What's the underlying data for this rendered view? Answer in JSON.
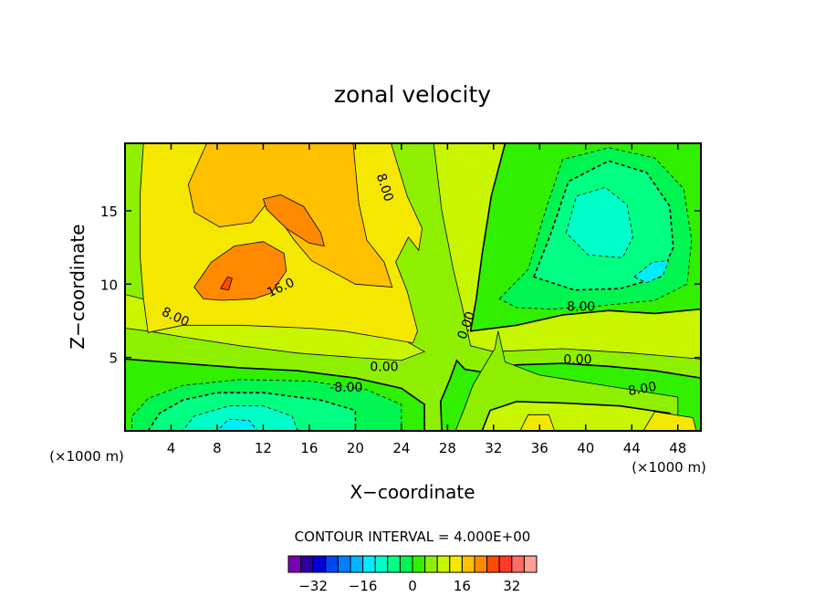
{
  "chart_data": {
    "type": "contour",
    "title": "zonal velocity",
    "xlabel": "X−coordinate",
    "ylabel": "Z−coordinate",
    "x_unit_label": "(×1000 m)",
    "x_unit_label_right": "(×1000 m)",
    "xlim": [
      0,
      50
    ],
    "ylim": [
      0,
      19.6
    ],
    "xticks": [
      4,
      8,
      12,
      16,
      20,
      24,
      28,
      32,
      36,
      40,
      44,
      48
    ],
    "yticks": [
      5,
      10,
      15
    ],
    "contour_interval_text": "CONTOUR INTERVAL = 4.000E+00",
    "contour_labels": [
      {
        "text": "8.00",
        "x": 22.6,
        "y": 16.6,
        "rotation": 72
      },
      {
        "text": "16.0",
        "x": 13.5,
        "y": 9.8,
        "rotation": -25
      },
      {
        "text": "8.00",
        "x": 4.4,
        "y": 7.8,
        "rotation": 25
      },
      {
        "text": "0.00",
        "x": 29.6,
        "y": 7.2,
        "rotation": -70
      },
      {
        "text": "0.00",
        "x": 22.5,
        "y": 4.4,
        "rotation": 0
      },
      {
        "text": "-8.00",
        "x": 19.2,
        "y": 3.0,
        "rotation": 0
      },
      {
        "text": "8.00",
        "x": 39.6,
        "y": 8.5,
        "rotation": 0
      },
      {
        "text": "0.00",
        "x": 39.3,
        "y": 4.9,
        "rotation": 0
      },
      {
        "text": "8.00",
        "x": 44.9,
        "y": 2.9,
        "rotation": -10
      }
    ],
    "colorbar": {
      "levels": [
        -36,
        -32,
        -28,
        -24,
        -20,
        -16,
        -12,
        -8,
        -4,
        0,
        4,
        8,
        12,
        16,
        20,
        24,
        28,
        32,
        36
      ],
      "tick_values": [
        -32,
        -16,
        0,
        16,
        32
      ],
      "tick_labels": [
        "−32",
        "−16",
        "0",
        "16",
        "32"
      ],
      "colors": [
        "#7a00b4",
        "#2c00a0",
        "#0000d8",
        "#0045f5",
        "#0080ff",
        "#00b4ff",
        "#00ecff",
        "#00ffc8",
        "#00ff82",
        "#00f550",
        "#30f000",
        "#8ef000",
        "#c8f500",
        "#f5e800",
        "#ffc000",
        "#ff8a00",
        "#ff4a00",
        "#ff3a28",
        "#ff6e5e",
        "#ff9e94"
      ]
    },
    "regions": [
      {
        "level": "8 to 12",
        "points": [
          [
            0,
            0
          ],
          [
            50,
            0
          ],
          [
            50,
            19.6
          ],
          [
            0,
            19.6
          ]
        ]
      },
      {
        "level": "4 to 8",
        "points": [
          [
            0,
            0
          ],
          [
            50,
            0
          ],
          [
            50,
            4.9
          ],
          [
            44,
            5.3
          ],
          [
            38,
            5.6
          ],
          [
            32,
            5.4
          ],
          [
            30,
            5.8
          ],
          [
            29.3,
            8.4
          ],
          [
            28.5,
            11
          ],
          [
            27.5,
            15
          ],
          [
            26.8,
            19.6
          ],
          [
            0,
            19.6
          ],
          [
            0,
            9.3
          ],
          [
            2,
            8.9
          ],
          [
            5,
            8.5
          ],
          [
            8,
            8.0
          ],
          [
            12,
            7.7
          ],
          [
            16,
            7.2
          ],
          [
            20,
            6.8
          ],
          [
            24,
            6.3
          ],
          [
            26,
            5.4
          ],
          [
            24,
            4.8
          ],
          [
            20,
            5.0
          ],
          [
            15,
            5.3
          ],
          [
            10,
            5.8
          ],
          [
            5,
            6.4
          ],
          [
            2,
            6.8
          ],
          [
            0,
            7.0
          ]
        ]
      },
      {
        "level": "0 to 4",
        "points": [
          [
            27.5,
            0
          ],
          [
            50,
            0
          ],
          [
            50,
            3.6
          ],
          [
            46,
            4.1
          ],
          [
            42,
            4.4
          ],
          [
            38,
            4.6
          ],
          [
            34,
            4.5
          ],
          [
            31,
            4.0
          ],
          [
            29.5,
            4.2
          ],
          [
            28.8,
            4.8
          ],
          [
            28.2,
            3.5
          ],
          [
            27.4,
            2.0
          ]
        ]
      },
      {
        "level": "0 to 4",
        "points": [
          [
            30,
            6.8
          ],
          [
            34,
            7.2
          ],
          [
            38,
            7.9
          ],
          [
            42,
            8.2
          ],
          [
            46,
            8.0
          ],
          [
            50,
            8.3
          ],
          [
            50,
            19.6
          ],
          [
            33,
            19.6
          ],
          [
            31.8,
            16
          ],
          [
            31,
            12
          ],
          [
            30.5,
            9
          ]
        ]
      },
      {
        "level": "0 to 4",
        "points": [
          [
            0,
            0
          ],
          [
            26,
            0
          ],
          [
            26,
            1.8
          ],
          [
            24,
            2.9
          ],
          [
            20,
            3.6
          ],
          [
            15,
            4.1
          ],
          [
            10,
            4.3
          ],
          [
            5,
            4.6
          ],
          [
            0,
            4.9
          ]
        ]
      },
      {
        "level": "-4 to 0",
        "points": [
          [
            0.6,
            0
          ],
          [
            24,
            0
          ],
          [
            24,
            1.8
          ],
          [
            21,
            2.8
          ],
          [
            16,
            3.4
          ],
          [
            10,
            3.5
          ],
          [
            5,
            3.1
          ],
          [
            2,
            2.2
          ],
          [
            0.6,
            1.0
          ]
        ]
      },
      {
        "level": "-4 to 0",
        "points": [
          [
            32.5,
            9.0
          ],
          [
            35,
            11
          ],
          [
            36.5,
            15
          ],
          [
            38,
            18.5
          ],
          [
            42,
            19.3
          ],
          [
            46,
            18.6
          ],
          [
            48.5,
            16.5
          ],
          [
            49.2,
            13
          ],
          [
            48.8,
            10
          ],
          [
            46,
            8.9
          ],
          [
            41,
            8.5
          ],
          [
            37,
            8.3
          ],
          [
            34,
            8.4
          ]
        ]
      },
      {
        "level": "-8 to -4",
        "points": [
          [
            2,
            0
          ],
          [
            20,
            0
          ],
          [
            20,
            1.4
          ],
          [
            17,
            2.1
          ],
          [
            12,
            2.6
          ],
          [
            8,
            2.6
          ],
          [
            5,
            2.1
          ],
          [
            3,
            1.2
          ]
        ]
      },
      {
        "level": "-8 to -4",
        "points": [
          [
            35.5,
            10.5
          ],
          [
            37,
            13.5
          ],
          [
            38.5,
            17
          ],
          [
            42,
            18.4
          ],
          [
            45.3,
            17.6
          ],
          [
            47.3,
            15.3
          ],
          [
            47.6,
            12.5
          ],
          [
            46.5,
            10.5
          ],
          [
            43,
            9.7
          ],
          [
            39,
            9.6
          ]
        ]
      },
      {
        "level": "-12 to -8",
        "points": [
          [
            5,
            0
          ],
          [
            15,
            0
          ],
          [
            14.5,
            1.0
          ],
          [
            12,
            1.7
          ],
          [
            9,
            1.7
          ],
          [
            6,
            1.0
          ]
        ]
      },
      {
        "level": "-12 to -8",
        "points": [
          [
            38.3,
            13.5
          ],
          [
            39.2,
            16
          ],
          [
            41.7,
            16.6
          ],
          [
            43.6,
            15.4
          ],
          [
            44.1,
            13.2
          ],
          [
            43.2,
            11.8
          ],
          [
            40.2,
            12.0
          ]
        ]
      },
      {
        "level": "-16 to -12",
        "points": [
          [
            8,
            0
          ],
          [
            11.5,
            0
          ],
          [
            10.8,
            0.7
          ],
          [
            9,
            0.8
          ]
        ]
      },
      {
        "level": "-16 to -12",
        "points": [
          [
            44.2,
            10.5
          ],
          [
            45.8,
            11.5
          ],
          [
            47.2,
            11.6
          ],
          [
            46.7,
            10.6
          ],
          [
            45.3,
            10.1
          ]
        ]
      },
      {
        "level": "4 to 8",
        "points": [
          [
            28.7,
            0
          ],
          [
            48,
            0
          ],
          [
            48,
            2.3
          ],
          [
            44,
            2.8
          ],
          [
            40,
            3.3
          ],
          [
            36,
            3.8
          ],
          [
            33,
            4.7
          ],
          [
            32.4,
            6.8
          ],
          [
            32.1,
            5.6
          ],
          [
            31.1,
            4.3
          ],
          [
            30.2,
            3.1
          ],
          [
            29.5,
            1.6
          ]
        ]
      },
      {
        "level": "8 to 12",
        "points": [
          [
            31,
            0
          ],
          [
            47.5,
            0
          ],
          [
            47.3,
            1.2
          ],
          [
            43,
            1.7
          ],
          [
            38,
            1.9
          ],
          [
            34,
            2.0
          ],
          [
            31.7,
            1.4
          ]
        ]
      },
      {
        "level": "12 to 16",
        "points": [
          [
            45,
            0
          ],
          [
            49.6,
            0
          ],
          [
            49.3,
            0.9
          ],
          [
            46,
            1.3
          ]
        ]
      },
      {
        "level": "12 to 16",
        "points": [
          [
            34.3,
            0
          ],
          [
            37.3,
            0
          ],
          [
            36.8,
            1.1
          ],
          [
            35,
            1.1
          ]
        ]
      },
      {
        "level": "12 to 16",
        "points": [
          [
            2,
            6.7
          ],
          [
            5,
            7.2
          ],
          [
            10,
            7.2
          ],
          [
            16,
            7.0
          ],
          [
            19,
            6.8
          ],
          [
            22,
            6.4
          ],
          [
            25,
            6.0
          ],
          [
            25.4,
            6.8
          ],
          [
            24.5,
            9.5
          ],
          [
            23.5,
            11.5
          ],
          [
            24.6,
            13.2
          ],
          [
            25.5,
            12.3
          ],
          [
            25.8,
            13.8
          ],
          [
            24.5,
            16
          ],
          [
            23.1,
            19.6
          ],
          [
            1.6,
            19.6
          ],
          [
            1.3,
            16
          ],
          [
            1.3,
            12
          ],
          [
            1.6,
            9
          ]
        ]
      },
      {
        "level": "16 to 20",
        "points": [
          [
            5.5,
            16.8
          ],
          [
            6,
            14.9
          ],
          [
            8.2,
            13.9
          ],
          [
            11,
            14.2
          ],
          [
            12.4,
            15.6
          ],
          [
            14.7,
            13.0
          ],
          [
            16.2,
            11.6
          ],
          [
            20,
            10.0
          ],
          [
            23.2,
            9.8
          ],
          [
            22.5,
            11.5
          ],
          [
            21,
            13
          ],
          [
            20.3,
            15.5
          ],
          [
            19.8,
            19.6
          ],
          [
            7.1,
            19.6
          ]
        ]
      },
      {
        "level": "20 to 24",
        "points": [
          [
            12,
            15.8
          ],
          [
            13.5,
            16.1
          ],
          [
            15.5,
            15.3
          ],
          [
            17,
            13.5
          ],
          [
            17.3,
            12.6
          ],
          [
            16,
            12.8
          ],
          [
            14,
            13.8
          ],
          [
            12.3,
            15.1
          ]
        ]
      },
      {
        "level": "20 to 24",
        "points": [
          [
            6,
            9.8
          ],
          [
            7.5,
            11.5
          ],
          [
            9.5,
            12.6
          ],
          [
            12,
            12.9
          ],
          [
            13.8,
            12.1
          ],
          [
            14,
            10.9
          ],
          [
            12.7,
            9.4
          ],
          [
            11.2,
            9.0
          ],
          [
            8.5,
            8.9
          ],
          [
            6.8,
            9.0
          ]
        ]
      },
      {
        "level": "24 to 28",
        "points": [
          [
            8.3,
            9.7
          ],
          [
            8.9,
            10.5
          ],
          [
            9.3,
            10.4
          ],
          [
            9.0,
            9.6
          ]
        ]
      }
    ]
  }
}
